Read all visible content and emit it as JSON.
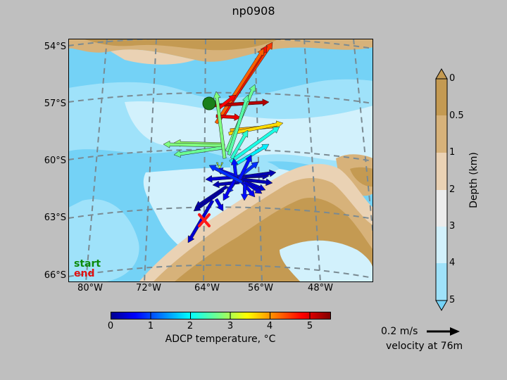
{
  "title": "np0908",
  "map": {
    "lat_labels": [
      "54°S",
      "57°S",
      "60°S",
      "63°S",
      "66°S"
    ],
    "lon_labels": [
      "80°W",
      "72°W",
      "64°W",
      "56°W",
      "48°W"
    ],
    "legend": {
      "start": "start",
      "end": "end",
      "start_color": "#0a8a0a",
      "end_color": "#e01010"
    }
  },
  "temperature_colorbar": {
    "label": "ADCP temperature, °C",
    "ticks": [
      "0",
      "1",
      "2",
      "3",
      "4",
      "5"
    ],
    "range": [
      0,
      5.5
    ],
    "colormap": "jet"
  },
  "depth_colorbar": {
    "label": "Depth (km)",
    "ticks": [
      "0",
      "0.5",
      "1",
      "2",
      "3",
      "4",
      "5"
    ],
    "colors": [
      "#c49a52",
      "#d7b27a",
      "#ead2b4",
      "#ececec",
      "#d2f1fc",
      "#9fe2fa",
      "#74d2f6"
    ]
  },
  "scale_arrow": {
    "label": "0.2 m/s",
    "caption": "velocity at 76m"
  },
  "colors": {
    "background": "#bfbfbf",
    "land_dark": "#c49a52",
    "land_mid": "#d7b27a",
    "land_light": "#ead2b4",
    "ocean_shallow": "#d2f1fc",
    "ocean_mid": "#9fe2fa",
    "ocean_deep": "#74d2f6",
    "start_marker": "#1a7f1a",
    "end_marker": "#ff1a1a"
  }
}
